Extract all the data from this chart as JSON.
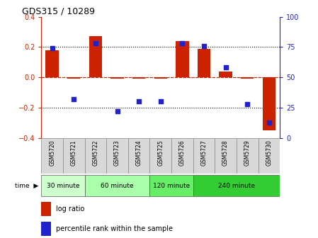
{
  "title": "GDS315 / 10289",
  "samples": [
    "GSM5720",
    "GSM5721",
    "GSM5722",
    "GSM5723",
    "GSM5724",
    "GSM5725",
    "GSM5726",
    "GSM5727",
    "GSM5728",
    "GSM5729",
    "GSM5730"
  ],
  "log_ratio": [
    0.18,
    -0.01,
    0.27,
    -0.01,
    -0.01,
    -0.01,
    0.24,
    0.19,
    0.04,
    -0.01,
    -0.35
  ],
  "percentile_rank": [
    74,
    32,
    78,
    22,
    30,
    30,
    78,
    76,
    58,
    28,
    13
  ],
  "groups": [
    {
      "label": "30 minute",
      "start": 0,
      "end": 1,
      "color": "#ccffcc"
    },
    {
      "label": "60 minute",
      "start": 2,
      "end": 4,
      "color": "#aaffaa"
    },
    {
      "label": "120 minute",
      "start": 5,
      "end": 6,
      "color": "#77ee77"
    },
    {
      "label": "240 minute",
      "start": 7,
      "end": 10,
      "color": "#44dd44"
    }
  ],
  "bar_color": "#cc2200",
  "dot_color": "#2222cc",
  "ylim_left": [
    -0.4,
    0.4
  ],
  "ylim_right": [
    0,
    100
  ],
  "bar_width": 0.6,
  "bar_color_red": "#cc2200",
  "dot_color_blue": "#2222bb",
  "group_colors": [
    "#ccffcc",
    "#aaffaa",
    "#77ee77",
    "#44dd44"
  ]
}
